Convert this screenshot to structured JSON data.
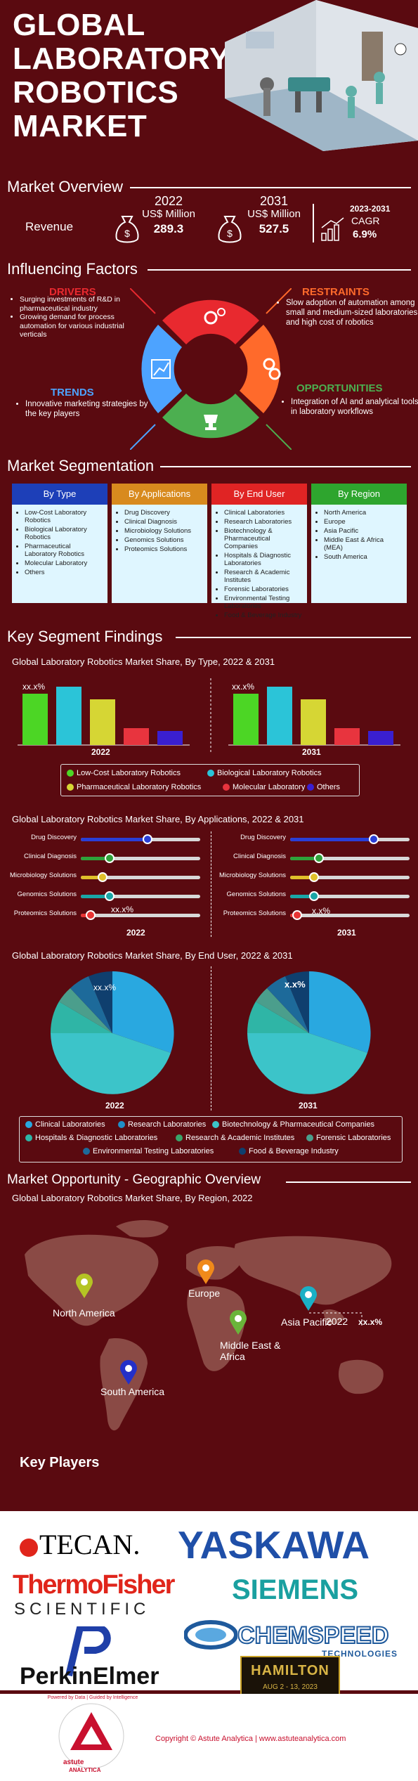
{
  "hero": {
    "title_lines": [
      "GLOBAL",
      "LABORATORY",
      "ROBOTICS",
      "MARKET"
    ]
  },
  "overview": {
    "heading": "Market Overview",
    "revenue_label": "Revenue",
    "y1": {
      "year": "2022",
      "unit": "US$ Million",
      "value": "289.3"
    },
    "y2": {
      "year": "2031",
      "unit": "US$ Million",
      "value": "527.5"
    },
    "cagr": {
      "period": "2023-2031",
      "label": "CAGR",
      "value": "6.9%"
    }
  },
  "factors": {
    "heading": "Influencing Factors",
    "drivers": {
      "title": "DRIVERS",
      "items": [
        "Surging investments of R&D in pharmaceutical industry",
        "Growing demand for process automation for various industrial verticals"
      ],
      "color": "#e8292f"
    },
    "restraints": {
      "title": "RESTRAINTS",
      "items": [
        "Slow adoption of automation among small and medium-sized laboratories and high cost of robotics"
      ],
      "color": "#ff6a2b"
    },
    "trends": {
      "title": "TRENDS",
      "items": [
        "Innovative marketing strategies by the key players"
      ],
      "color": "#4da3ff"
    },
    "opportunities": {
      "title": "OPPORTUNITIES",
      "items": [
        "Integration of AI and analytical tools in laboratory workflows"
      ],
      "color": "#4caf50"
    }
  },
  "segmentation": {
    "heading": "Market Segmentation",
    "columns": [
      {
        "title": "By Type",
        "color": "#1d3fb8",
        "items": [
          "Low-Cost Laboratory Robotics",
          "Biological Laboratory Robotics",
          "Pharmaceutical Laboratory Robotics",
          "Molecular Laboratory",
          "Others"
        ]
      },
      {
        "title": "By Applications",
        "color": "#d88a1e",
        "items": [
          "Drug Discovery",
          "Clinical Diagnosis",
          "Microbiology Solutions",
          "Genomics Solutions",
          "Proteomics Solutions"
        ]
      },
      {
        "title": "By End User",
        "color": "#e02424",
        "items": [
          "Clinical Laboratories",
          "Research Laboratories",
          "Biotechnology & Pharmaceutical Companies",
          "Hospitals & Diagnostic Laboratories",
          "Research & Academic Institutes",
          "Forensic Laboratories",
          "Environmental Testing Laboratories",
          "Food & Beverage Industry"
        ]
      },
      {
        "title": "By Region",
        "color": "#2ea52e",
        "items": [
          "North America",
          "Europe",
          "Asia Pacific",
          "Middle East & Africa (MEA)",
          "South America"
        ]
      }
    ]
  },
  "findings": {
    "heading": "Key Segment Findings",
    "type_chart": {
      "title": "Global Laboratory Robotics Market Share, By Type, 2022 & 2031",
      "placeholder": "xx.x%",
      "year_a": "2022",
      "year_b": "2031",
      "legend": [
        {
          "label": "Low-Cost Laboratory Robotics",
          "color": "#4cd625"
        },
        {
          "label": "Biological Laboratory Robotics",
          "color": "#2bc4d8"
        },
        {
          "label": "Pharmaceutical Laboratory Robotics",
          "color": "#d6d634"
        },
        {
          "label": "Molecular Laboratory",
          "color": "#e8343e"
        },
        {
          "label": "Others",
          "color": "#3a1fd0"
        }
      ]
    },
    "app_chart": {
      "title": "Global Laboratory Robotics Market Share, By Applications, 2022 & 2031",
      "labels": [
        "Drug Discovery",
        "Clinical Diagnosis",
        "Microbiology Solutions",
        "Genomics Solutions",
        "Proteomics Solutions"
      ],
      "colors": [
        "#2a3fd6",
        "#2fa13a",
        "#e0c02a",
        "#1aa6a6",
        "#e83434"
      ],
      "placeholder_a": "xx.x%",
      "placeholder_b": "x.x%",
      "year_a": "2022",
      "year_b": "2031"
    },
    "end_chart": {
      "title": "Global Laboratory Robotics Market Share, By End User, 2022 & 2031",
      "placeholder_a": "xx.x%",
      "placeholder_b": "x.x%",
      "year_a": "2022",
      "year_b": "2031",
      "legend": [
        {
          "label": "Clinical Laboratories",
          "color": "#29a8e0"
        },
        {
          "label": "Research Laboratories",
          "color": "#1f8fc8"
        },
        {
          "label": "Biotechnology & Pharmaceutical Companies",
          "color": "#3cc4c9"
        },
        {
          "label": "Hospitals & Diagnostic Laboratories",
          "color": "#2fb5a6"
        },
        {
          "label": "Research & Academic Institutes",
          "color": "#3aa46a"
        },
        {
          "label": "Forensic Laboratories",
          "color": "#4b9e8c"
        },
        {
          "label": "Environmental Testing Laboratories",
          "color": "#1d6a9a"
        },
        {
          "label": "Food & Beverage Industry",
          "color": "#0f3f6e"
        }
      ]
    }
  },
  "geo": {
    "heading": "Market Opportunity - Geographic Overview",
    "title": "Global Laboratory Robotics Market Share, By Region, 2022",
    "regions": [
      {
        "name": "North America",
        "color": "#b5c424"
      },
      {
        "name": "Europe",
        "color": "#f08a1a"
      },
      {
        "name": "Asia Pacific",
        "color": "#1ab0c6"
      },
      {
        "name": "Middle East & Africa",
        "color": "#6ab43a"
      },
      {
        "name": "South America",
        "color": "#2430c8"
      }
    ],
    "callout_year": "2022",
    "callout_value": "xx.x%"
  },
  "players": {
    "heading": "Key Players",
    "names": [
      "TECAN.",
      "YASKAWA",
      "ThermoFisher",
      "SCIENTIFIC",
      "SIEMENS",
      "CHEMSPEED",
      "TECHNOLOGIES",
      "PerkinElmer",
      "HAMILTON",
      "AUG 2 - 13, 2023"
    ]
  },
  "footer": {
    "copyright": "Copyright © Astute Analytica  |  www.astuteanalytica.com",
    "brand": "astute",
    "brand_sub": "ANALYTICA",
    "tagline": "Powered by Data | Guided by Intelligence"
  }
}
